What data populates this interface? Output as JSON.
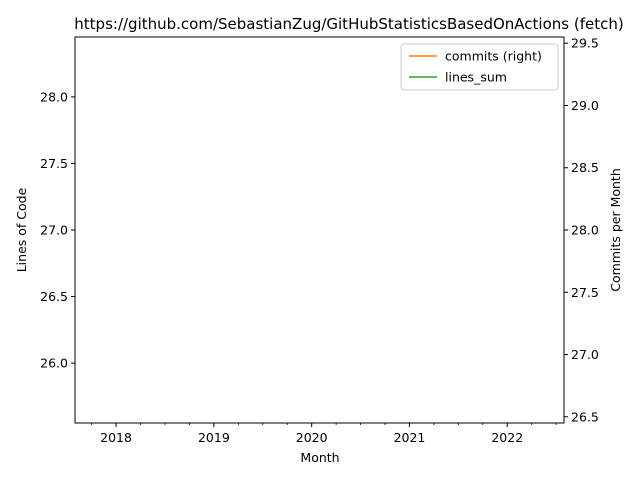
{
  "chart_data": {
    "type": "line",
    "title": "https://github.com/SebastianZug/GitHubStatisticsBasedOnActions (fetch)",
    "xlabel": "Month",
    "ylabel": "Lines of Code",
    "y2label": "Commits per Month",
    "x_ticks": [
      "2018",
      "2019",
      "2020",
      "2021",
      "2022"
    ],
    "xlim": [
      2017.58,
      2022.58
    ],
    "ylim": [
      25.55,
      28.45
    ],
    "y_ticks": [
      "26.0",
      "26.5",
      "27.0",
      "27.5",
      "28.0"
    ],
    "y2lim": [
      26.45,
      29.55
    ],
    "y2_ticks": [
      "26.5",
      "27.0",
      "27.5",
      "28.0",
      "28.5",
      "29.0",
      "29.5"
    ],
    "grid": false,
    "legend_position": "top-right",
    "series": [
      {
        "name": "commits (right)",
        "color": "#ff7f0e",
        "axis": "right",
        "values": []
      },
      {
        "name": "lines_sum",
        "color": "#2ca02c",
        "axis": "left",
        "values": []
      }
    ]
  }
}
